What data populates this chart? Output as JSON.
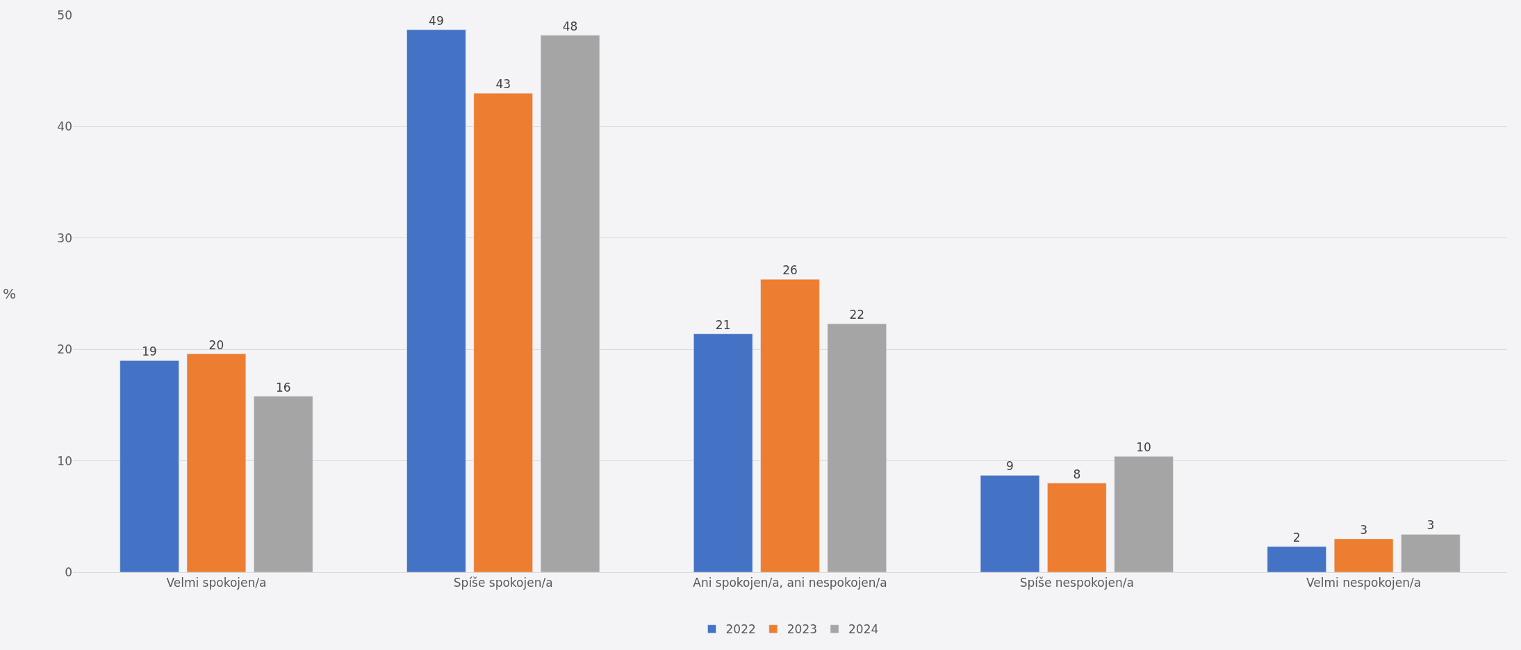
{
  "chart_data": {
    "type": "bar",
    "ylabel": "%",
    "categories": [
      "Velmi spokojen/a",
      "Spíše spokojen/a",
      "Ani spokojen/a, ani nespokojen/a",
      "Spíše nespokojen/a",
      "Velmi nespokojen/a"
    ],
    "series": [
      {
        "name": "2022",
        "color": "#4472c4",
        "values": [
          19.0,
          48.7,
          21.4,
          8.7,
          2.3
        ],
        "value_labels": [
          "19",
          "49",
          "21",
          "9",
          "2"
        ]
      },
      {
        "name": "2023",
        "color": "#ed7d31",
        "values": [
          19.6,
          43.0,
          26.3,
          8.0,
          3.0
        ],
        "value_labels": [
          "20",
          "43",
          "26",
          "8",
          "3"
        ]
      },
      {
        "name": "2024",
        "color": "#a5a5a5",
        "values": [
          15.8,
          48.2,
          22.3,
          10.4,
          3.4
        ],
        "value_labels": [
          "16",
          "48",
          "22",
          "10",
          "3"
        ]
      }
    ],
    "ylim": [
      0,
      50
    ],
    "yticks": [
      0,
      10,
      20,
      30,
      40,
      50
    ],
    "grid": "y",
    "legend": "bottom"
  }
}
